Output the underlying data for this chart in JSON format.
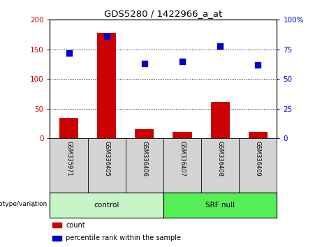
{
  "title": "GDS5280 / 1422966_a_at",
  "samples": [
    "GSM335971",
    "GSM336405",
    "GSM336406",
    "GSM336407",
    "GSM336408",
    "GSM336409"
  ],
  "counts": [
    35,
    178,
    15,
    11,
    61,
    11
  ],
  "percentile_ranks": [
    72,
    86,
    63,
    65,
    78,
    62
  ],
  "bar_color": "#cc0000",
  "dot_color": "#0000cc",
  "ylim_left": [
    0,
    200
  ],
  "ylim_right": [
    0,
    100
  ],
  "yticks_left": [
    0,
    50,
    100,
    150,
    200
  ],
  "ytick_labels_left": [
    "0",
    "50",
    "100",
    "150",
    "200"
  ],
  "yticks_right": [
    0,
    25,
    50,
    75,
    100
  ],
  "ytick_labels_right": [
    "0",
    "25",
    "50",
    "75",
    "100%"
  ],
  "bg_color": "#ffffff",
  "plot_bg_color": "#ffffff",
  "tick_label_color_left": "#cc0000",
  "tick_label_color_right": "#0000cc",
  "genotype_label": "genotype/variation",
  "legend": [
    {
      "label": "count",
      "color": "#cc0000"
    },
    {
      "label": "percentile rank within the sample",
      "color": "#0000cc"
    }
  ],
  "sample_bg_color": "#d3d3d3",
  "group_control_color": "#c8f5c8",
  "group_srf_color": "#55ee55",
  "control_samples": 3,
  "srf_samples": 3
}
